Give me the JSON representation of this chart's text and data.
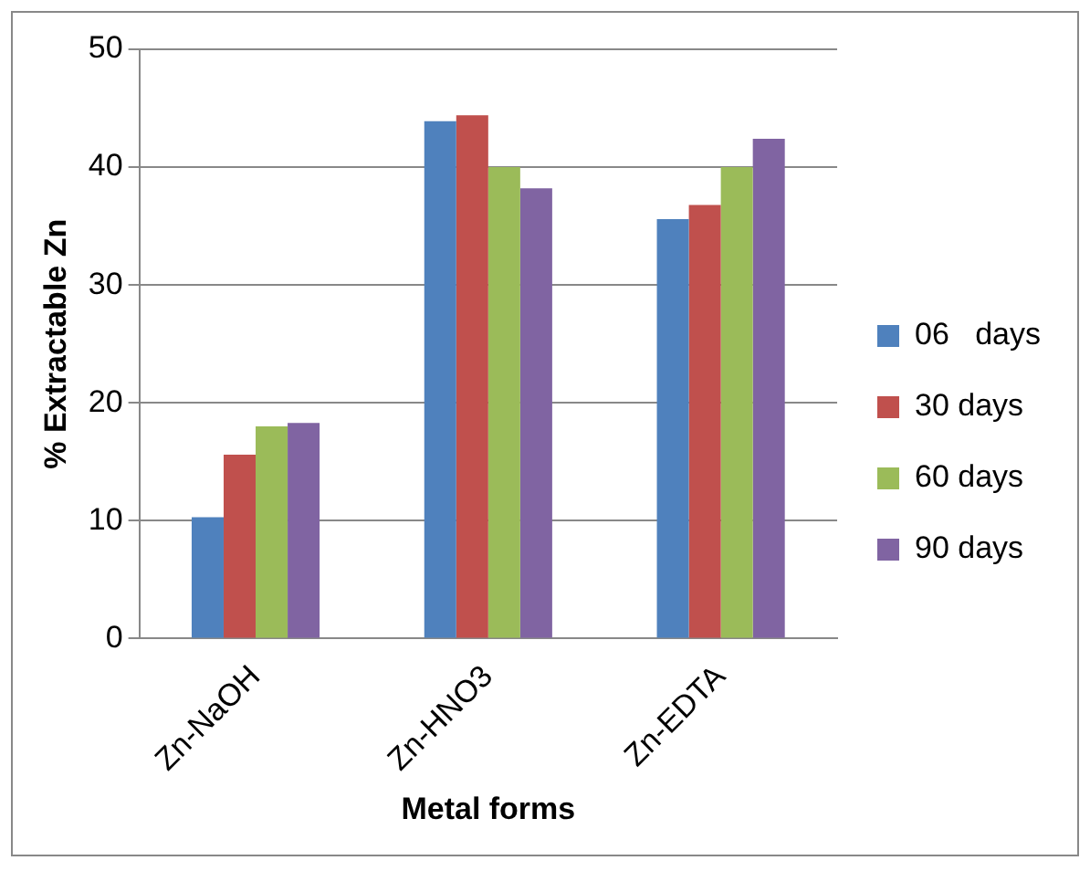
{
  "chart_data": {
    "type": "bar",
    "xlabel": "Metal forms",
    "ylabel": "% Extractable Zn",
    "categories": [
      "Zn-NaOH",
      "Zn-HNO3",
      "Zn-EDTA"
    ],
    "series": [
      {
        "name": "06   days",
        "color": "#4f81bd",
        "values": [
          10.3,
          43.9,
          35.6
        ]
      },
      {
        "name": "30 days",
        "color": "#c0504d",
        "values": [
          15.6,
          44.4,
          36.8
        ]
      },
      {
        "name": "60 days",
        "color": "#9bbb59",
        "values": [
          18.0,
          40.0,
          40.0
        ]
      },
      {
        "name": "90 days",
        "color": "#8064a2",
        "values": [
          18.3,
          38.2,
          42.4
        ]
      }
    ],
    "ylim": [
      0,
      50
    ],
    "yticks": [
      0,
      10,
      20,
      30,
      40,
      50
    ],
    "grid": "y",
    "legend": "right"
  }
}
